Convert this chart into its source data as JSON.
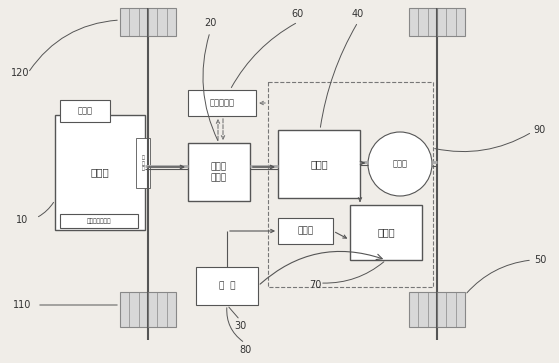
{
  "bg_color": "#f0ede8",
  "line_color": "#555555",
  "box_color": "#ffffff",
  "box_edge": "#555555",
  "dashed_color": "#777777",
  "text_color": "#333333",
  "labels": {
    "fadianji": "发电机",
    "fadongji": "发动机",
    "autocontrol": "自动油门控制器",
    "charge_motor": "充电两\n用电机",
    "motor_ctrl": "电机控制器",
    "biansuxiang": "变速箱",
    "charger": "充电器",
    "battery": "蓄电池",
    "jiansuqi": "减速器",
    "pedal": "踏  板"
  },
  "ref_nums": {
    "n10": "10",
    "n20": "20",
    "n30": "30",
    "n40": "40",
    "n50": "50",
    "n60": "60",
    "n70": "70",
    "n80": "80",
    "n90": "90",
    "n110": "110",
    "n120": "120"
  }
}
